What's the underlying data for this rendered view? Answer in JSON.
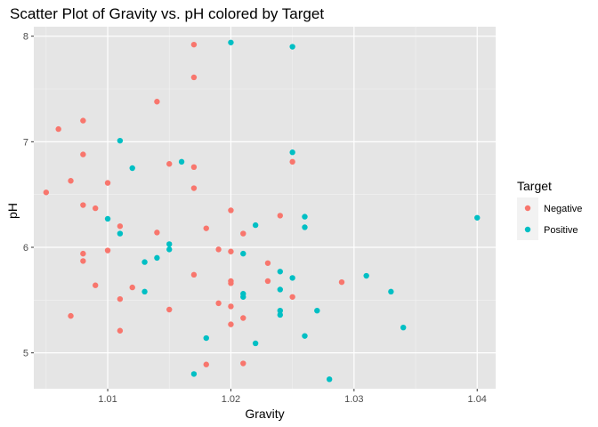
{
  "chart_data": {
    "type": "scatter",
    "title": "Scatter Plot of Gravity vs. pH colored by Target",
    "xlabel": "Gravity",
    "ylabel": "pH",
    "xlim": [
      1.004,
      1.0415
    ],
    "ylim": [
      4.66,
      8.09
    ],
    "x_ticks": [
      {
        "value": 1.01,
        "label": "1.01"
      },
      {
        "value": 1.02,
        "label": "1.02"
      },
      {
        "value": 1.03,
        "label": "1.03"
      },
      {
        "value": 1.04,
        "label": "1.04"
      }
    ],
    "y_ticks": [
      {
        "value": 5,
        "label": "5"
      },
      {
        "value": 6,
        "label": "6"
      },
      {
        "value": 7,
        "label": "7"
      },
      {
        "value": 8,
        "label": "8"
      }
    ],
    "grid": true,
    "background": "#e5e5e5",
    "legend": {
      "title": "Target",
      "position": "right"
    },
    "series": [
      {
        "name": "Negative",
        "color": "#f8766d",
        "points": [
          [
            1.005,
            6.52
          ],
          [
            1.006,
            7.12
          ],
          [
            1.007,
            6.63
          ],
          [
            1.007,
            5.35
          ],
          [
            1.008,
            7.2
          ],
          [
            1.008,
            6.88
          ],
          [
            1.008,
            6.4
          ],
          [
            1.008,
            5.94
          ],
          [
            1.008,
            5.87
          ],
          [
            1.009,
            6.37
          ],
          [
            1.009,
            5.64
          ],
          [
            1.01,
            6.61
          ],
          [
            1.01,
            5.97
          ],
          [
            1.011,
            6.2
          ],
          [
            1.011,
            5.51
          ],
          [
            1.011,
            5.21
          ],
          [
            1.012,
            5.62
          ],
          [
            1.014,
            7.38
          ],
          [
            1.014,
            6.14
          ],
          [
            1.015,
            6.79
          ],
          [
            1.015,
            5.41
          ],
          [
            1.017,
            7.92
          ],
          [
            1.017,
            7.61
          ],
          [
            1.017,
            6.76
          ],
          [
            1.017,
            6.56
          ],
          [
            1.017,
            5.74
          ],
          [
            1.018,
            6.18
          ],
          [
            1.018,
            4.89
          ],
          [
            1.019,
            5.98
          ],
          [
            1.019,
            5.47
          ],
          [
            1.02,
            6.35
          ],
          [
            1.02,
            5.96
          ],
          [
            1.02,
            5.68
          ],
          [
            1.02,
            5.66
          ],
          [
            1.02,
            5.44
          ],
          [
            1.02,
            5.27
          ],
          [
            1.021,
            6.13
          ],
          [
            1.021,
            5.33
          ],
          [
            1.021,
            4.9
          ],
          [
            1.023,
            5.85
          ],
          [
            1.023,
            5.68
          ],
          [
            1.024,
            6.3
          ],
          [
            1.025,
            6.81
          ],
          [
            1.025,
            5.53
          ],
          [
            1.029,
            5.67
          ]
        ]
      },
      {
        "name": "Positive",
        "color": "#00bfc4",
        "points": [
          [
            1.01,
            6.27
          ],
          [
            1.011,
            7.01
          ],
          [
            1.011,
            6.13
          ],
          [
            1.012,
            6.75
          ],
          [
            1.013,
            5.86
          ],
          [
            1.013,
            5.58
          ],
          [
            1.014,
            5.9
          ],
          [
            1.015,
            6.03
          ],
          [
            1.015,
            5.98
          ],
          [
            1.016,
            6.81
          ],
          [
            1.017,
            4.8
          ],
          [
            1.018,
            5.14
          ],
          [
            1.02,
            7.94
          ],
          [
            1.021,
            5.94
          ],
          [
            1.021,
            5.56
          ],
          [
            1.021,
            5.53
          ],
          [
            1.022,
            6.21
          ],
          [
            1.022,
            5.09
          ],
          [
            1.024,
            5.77
          ],
          [
            1.024,
            5.6
          ],
          [
            1.024,
            5.4
          ],
          [
            1.024,
            5.36
          ],
          [
            1.025,
            7.9
          ],
          [
            1.025,
            6.9
          ],
          [
            1.025,
            5.71
          ],
          [
            1.026,
            6.29
          ],
          [
            1.026,
            6.19
          ],
          [
            1.026,
            5.16
          ],
          [
            1.027,
            5.4
          ],
          [
            1.028,
            4.75
          ],
          [
            1.031,
            5.73
          ],
          [
            1.033,
            5.58
          ],
          [
            1.034,
            5.24
          ],
          [
            1.04,
            6.28
          ]
        ]
      }
    ]
  }
}
